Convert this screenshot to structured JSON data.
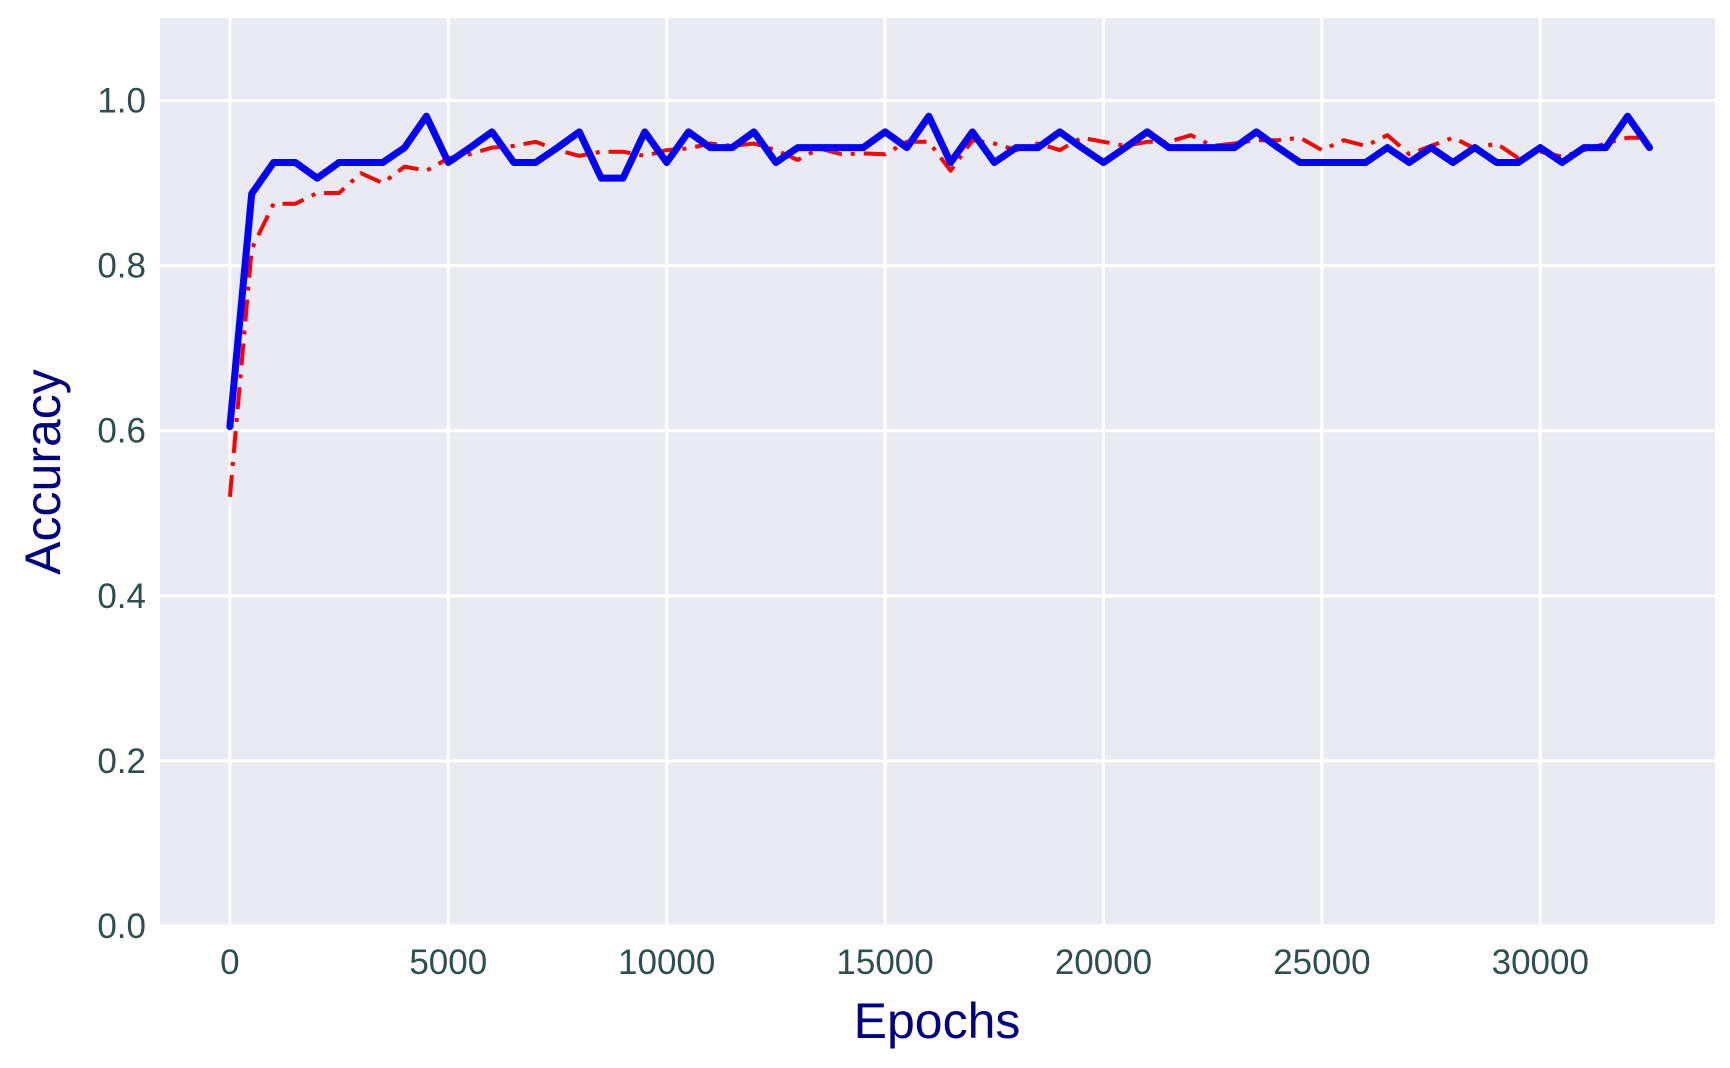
{
  "chart_data": {
    "type": "line",
    "title": "",
    "xlabel": "Epochs",
    "ylabel": "Accuracy",
    "xlim": [
      -1600,
      34000
    ],
    "ylim": [
      0.0,
      1.1
    ],
    "xticks": [
      0,
      5000,
      10000,
      15000,
      20000,
      25000,
      30000
    ],
    "yticks": [
      0.0,
      0.2,
      0.4,
      0.6,
      0.8,
      1.0
    ],
    "xtick_labels": [
      "0",
      "5000",
      "10000",
      "15000",
      "20000",
      "25000",
      "30000"
    ],
    "ytick_labels": [
      "0.0",
      "0.2",
      "0.4",
      "0.6",
      "0.8",
      "1.0"
    ],
    "grid": true,
    "legend": "none",
    "colors": {
      "background": "#eaeaf2",
      "grid": "#ffffff",
      "axis_text": "#2f4f4f",
      "axis_title": "#000080"
    },
    "series": [
      {
        "style": "dashdot",
        "color": "#ff0000",
        "points": [
          [
            0,
            0.52
          ],
          [
            500,
            0.82
          ],
          [
            1000,
            0.875
          ],
          [
            1500,
            0.875
          ],
          [
            2000,
            0.888
          ],
          [
            2500,
            0.888
          ],
          [
            3000,
            0.912
          ],
          [
            3500,
            0.9
          ],
          [
            4000,
            0.92
          ],
          [
            4500,
            0.915
          ],
          [
            5000,
            0.93
          ],
          [
            5500,
            0.935
          ],
          [
            6000,
            0.943
          ],
          [
            6500,
            0.945
          ],
          [
            7000,
            0.95
          ],
          [
            7500,
            0.94
          ],
          [
            8000,
            0.933
          ],
          [
            8500,
            0.938
          ],
          [
            9000,
            0.938
          ],
          [
            9500,
            0.933
          ],
          [
            10000,
            0.94
          ],
          [
            10500,
            0.942
          ],
          [
            11000,
            0.948
          ],
          [
            11500,
            0.945
          ],
          [
            12000,
            0.948
          ],
          [
            12500,
            0.94
          ],
          [
            13000,
            0.928
          ],
          [
            13500,
            0.942
          ],
          [
            14000,
            0.935
          ],
          [
            14500,
            0.936
          ],
          [
            15000,
            0.935
          ],
          [
            15500,
            0.95
          ],
          [
            16000,
            0.95
          ],
          [
            16500,
            0.915
          ],
          [
            17000,
            0.952
          ],
          [
            17500,
            0.948
          ],
          [
            18000,
            0.94
          ],
          [
            18500,
            0.948
          ],
          [
            19000,
            0.94
          ],
          [
            19500,
            0.955
          ],
          [
            20000,
            0.95
          ],
          [
            20500,
            0.945
          ],
          [
            21000,
            0.95
          ],
          [
            21500,
            0.95
          ],
          [
            22000,
            0.958
          ],
          [
            22500,
            0.945
          ],
          [
            23000,
            0.948
          ],
          [
            23500,
            0.952
          ],
          [
            24000,
            0.952
          ],
          [
            24500,
            0.955
          ],
          [
            25000,
            0.94
          ],
          [
            25500,
            0.952
          ],
          [
            26000,
            0.945
          ],
          [
            26500,
            0.958
          ],
          [
            27000,
            0.935
          ],
          [
            27500,
            0.945
          ],
          [
            28000,
            0.955
          ],
          [
            28500,
            0.942
          ],
          [
            29000,
            0.948
          ],
          [
            29500,
            0.93
          ],
          [
            30000,
            0.938
          ],
          [
            30500,
            0.932
          ],
          [
            31000,
            0.94
          ],
          [
            31500,
            0.948
          ],
          [
            32000,
            0.955
          ],
          [
            32500,
            0.955
          ]
        ]
      },
      {
        "style": "solid",
        "color": "#0000ff",
        "points": [
          [
            0,
            0.605
          ],
          [
            500,
            0.887
          ],
          [
            1000,
            0.925
          ],
          [
            1500,
            0.925
          ],
          [
            2000,
            0.906
          ],
          [
            2500,
            0.925
          ],
          [
            3000,
            0.925
          ],
          [
            3500,
            0.925
          ],
          [
            4000,
            0.943
          ],
          [
            4500,
            0.981
          ],
          [
            5000,
            0.925
          ],
          [
            5500,
            0.943
          ],
          [
            6000,
            0.962
          ],
          [
            6500,
            0.925
          ],
          [
            7000,
            0.925
          ],
          [
            7500,
            0.943
          ],
          [
            8000,
            0.962
          ],
          [
            8500,
            0.906
          ],
          [
            9000,
            0.906
          ],
          [
            9500,
            0.962
          ],
          [
            10000,
            0.925
          ],
          [
            10500,
            0.962
          ],
          [
            11000,
            0.943
          ],
          [
            11500,
            0.943
          ],
          [
            12000,
            0.962
          ],
          [
            12500,
            0.925
          ],
          [
            13000,
            0.943
          ],
          [
            13500,
            0.943
          ],
          [
            14000,
            0.943
          ],
          [
            14500,
            0.943
          ],
          [
            15000,
            0.962
          ],
          [
            15500,
            0.943
          ],
          [
            16000,
            0.981
          ],
          [
            16500,
            0.925
          ],
          [
            17000,
            0.962
          ],
          [
            17500,
            0.925
          ],
          [
            18000,
            0.943
          ],
          [
            18500,
            0.943
          ],
          [
            19000,
            0.962
          ],
          [
            19500,
            0.943
          ],
          [
            20000,
            0.925
          ],
          [
            20500,
            0.943
          ],
          [
            21000,
            0.962
          ],
          [
            21500,
            0.943
          ],
          [
            22000,
            0.943
          ],
          [
            22500,
            0.943
          ],
          [
            23000,
            0.943
          ],
          [
            23500,
            0.962
          ],
          [
            24000,
            0.943
          ],
          [
            24500,
            0.925
          ],
          [
            25000,
            0.925
          ],
          [
            25500,
            0.925
          ],
          [
            26000,
            0.925
          ],
          [
            26500,
            0.943
          ],
          [
            27000,
            0.925
          ],
          [
            27500,
            0.943
          ],
          [
            28000,
            0.925
          ],
          [
            28500,
            0.943
          ],
          [
            29000,
            0.925
          ],
          [
            29500,
            0.925
          ],
          [
            30000,
            0.943
          ],
          [
            30500,
            0.925
          ],
          [
            31000,
            0.943
          ],
          [
            31500,
            0.943
          ],
          [
            32000,
            0.981
          ],
          [
            32500,
            0.943
          ]
        ]
      }
    ]
  }
}
